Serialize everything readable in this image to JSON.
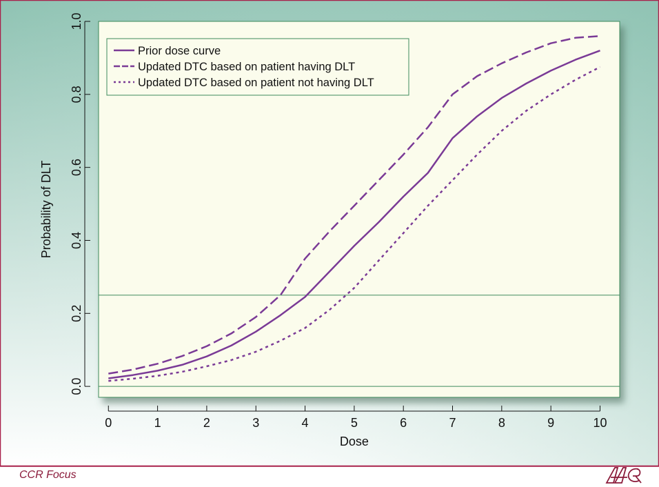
{
  "footer": {
    "journal": "CCR Focus",
    "logo_text": "AACR"
  },
  "colors": {
    "frame_border": "#a8204a",
    "gradient_top": "#8fc3b3",
    "gradient_bottom": "#ffffff",
    "plot_bg": "#fbfcec",
    "plot_border": "#3c8a5c",
    "ref_line": "#3c8a5c",
    "series": "#7a3a96",
    "text": "#111111"
  },
  "chart_data": {
    "type": "line",
    "title": "",
    "xlabel": "Dose",
    "ylabel": "Probability of DLT",
    "xlim": [
      -0.2,
      10.4
    ],
    "ylim": [
      -0.03,
      1.0
    ],
    "xticks": [
      "0",
      "1",
      "2",
      "3",
      "4",
      "5",
      "6",
      "7",
      "8",
      "9",
      "10"
    ],
    "yticks": [
      "0.0",
      "0.2",
      "0.4",
      "0.6",
      "0.8",
      "1.0"
    ],
    "reference_lines_y": [
      0.0,
      0.25
    ],
    "legend_position": "top-left",
    "x": [
      0,
      0.5,
      1,
      1.5,
      2,
      2.5,
      3,
      3.5,
      4,
      4.5,
      5,
      5.5,
      6,
      6.5,
      7,
      7.5,
      8,
      8.5,
      9,
      9.5,
      10
    ],
    "series": [
      {
        "name": "Prior dose curve",
        "style": "solid",
        "values": [
          0.022,
          0.031,
          0.043,
          0.059,
          0.082,
          0.112,
          0.15,
          0.195,
          0.245,
          0.315,
          0.385,
          0.45,
          0.52,
          0.585,
          0.68,
          0.74,
          0.79,
          0.83,
          0.865,
          0.895,
          0.92
        ]
      },
      {
        "name": "Updated DTC based on patient having DLT",
        "style": "dashed",
        "values": [
          0.035,
          0.046,
          0.062,
          0.083,
          0.11,
          0.145,
          0.19,
          0.25,
          0.35,
          0.425,
          0.495,
          0.565,
          0.635,
          0.71,
          0.8,
          0.85,
          0.885,
          0.915,
          0.94,
          0.955,
          0.96
        ]
      },
      {
        "name": "Updated DTC based on patient not having DLT",
        "style": "dotted",
        "values": [
          0.015,
          0.021,
          0.029,
          0.04,
          0.055,
          0.072,
          0.095,
          0.125,
          0.16,
          0.21,
          0.27,
          0.345,
          0.42,
          0.495,
          0.565,
          0.635,
          0.7,
          0.755,
          0.8,
          0.84,
          0.875
        ]
      }
    ]
  }
}
